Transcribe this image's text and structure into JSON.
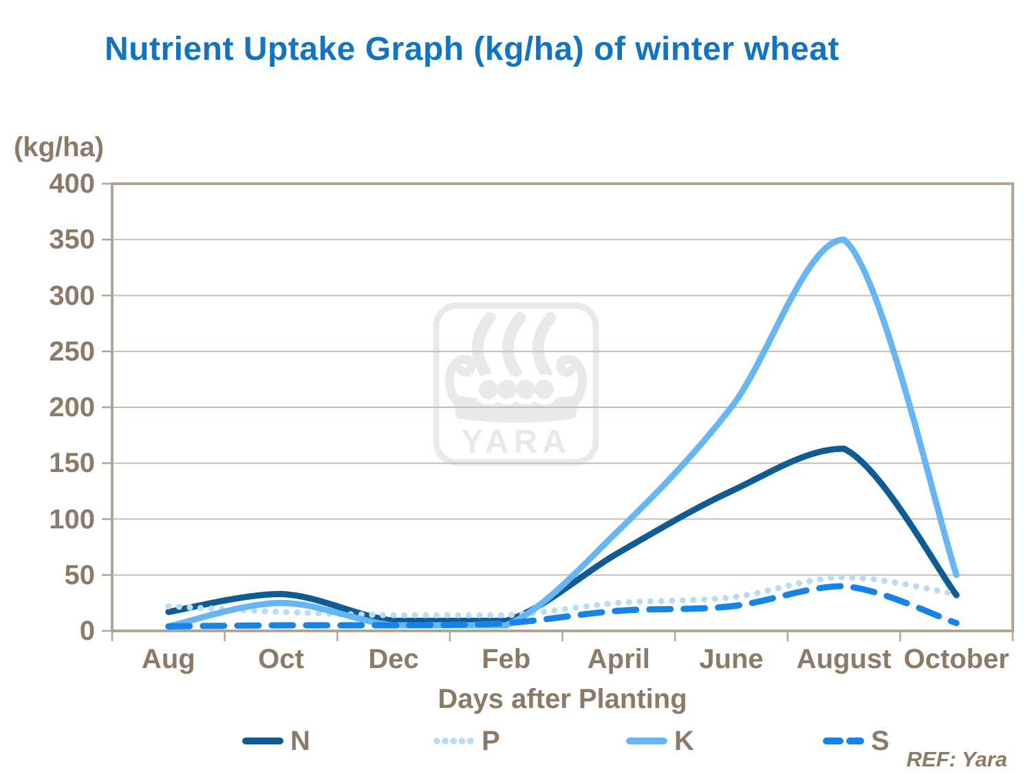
{
  "page": {
    "ref_note": "REF: Yara",
    "watermark_text": "YARA"
  },
  "colors": {
    "title": "#1272C4",
    "axis_text": "#8A7A67",
    "grid_line": "#C9BDB1",
    "plot_border": "#B3A595",
    "watermark": "#E9E9E9",
    "background": "#FFFFFF"
  },
  "chart_data": {
    "type": "line",
    "title": "Nutrient Uptake Graph (kg/ha) of winter wheat",
    "y_axis_unit_label": "(kg/ha)",
    "xlabel": "Days after Planting",
    "categories": [
      "Aug",
      "Oct",
      "Dec",
      "Feb",
      "April",
      "June",
      "August",
      "October"
    ],
    "ylim": [
      0,
      400
    ],
    "yticks": [
      0,
      50,
      100,
      150,
      200,
      250,
      300,
      350,
      400
    ],
    "grid": "horizontal-only",
    "line_shape": "smoothed",
    "legend_position": "bottom",
    "series": [
      {
        "name": "N",
        "color": "#0F5B94",
        "style": "solid",
        "values": [
          17,
          33,
          9,
          9,
          70,
          125,
          163,
          32
        ]
      },
      {
        "name": "P",
        "color": "#B8DBF8",
        "style": "dotted",
        "values": [
          22,
          17,
          14,
          14,
          25,
          30,
          48,
          33
        ]
      },
      {
        "name": "K",
        "color": "#66B5F5",
        "style": "solid",
        "values": [
          4,
          25,
          5,
          5,
          90,
          200,
          350,
          50
        ]
      },
      {
        "name": "S",
        "color": "#1583E8",
        "style": "dashed",
        "values": [
          4,
          5,
          5,
          7,
          18,
          22,
          40,
          7
        ]
      }
    ]
  }
}
